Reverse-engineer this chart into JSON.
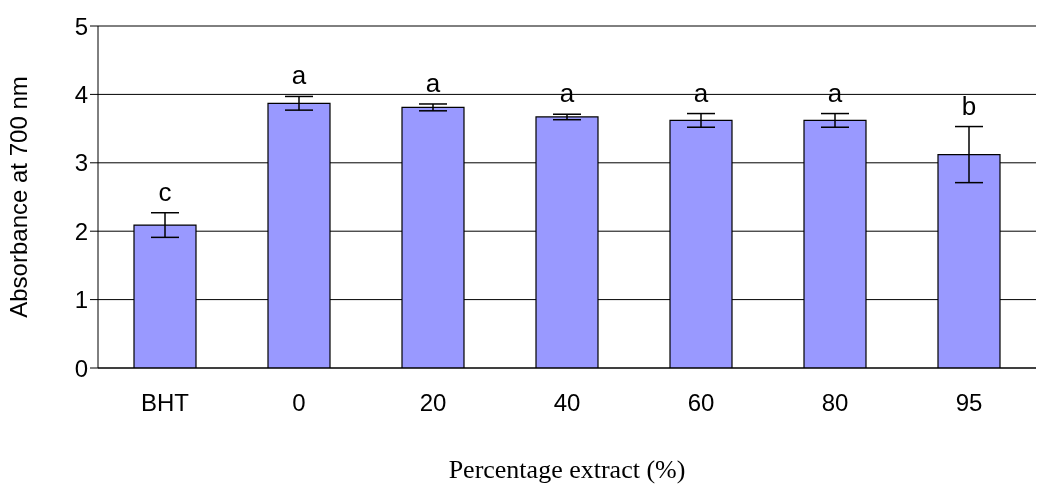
{
  "chart_data": {
    "type": "bar",
    "xlabel": "Percentage extract (%)",
    "ylabel": "Absorbance at 700 nm",
    "categories": [
      "BHT",
      "0",
      "20",
      "40",
      "60",
      "80",
      "95"
    ],
    "values": [
      2.09,
      3.87,
      3.81,
      3.67,
      3.62,
      3.62,
      3.12
    ],
    "errors": [
      0.18,
      0.1,
      0.05,
      0.04,
      0.1,
      0.1,
      0.41
    ],
    "color": "#9999ff",
    "ylim": [
      0,
      5
    ],
    "yticks": [
      0,
      1,
      2,
      3,
      4,
      5
    ],
    "grid": "y",
    "annotations": [
      "c",
      "a",
      "a",
      "a",
      "a",
      "a",
      "b"
    ]
  }
}
